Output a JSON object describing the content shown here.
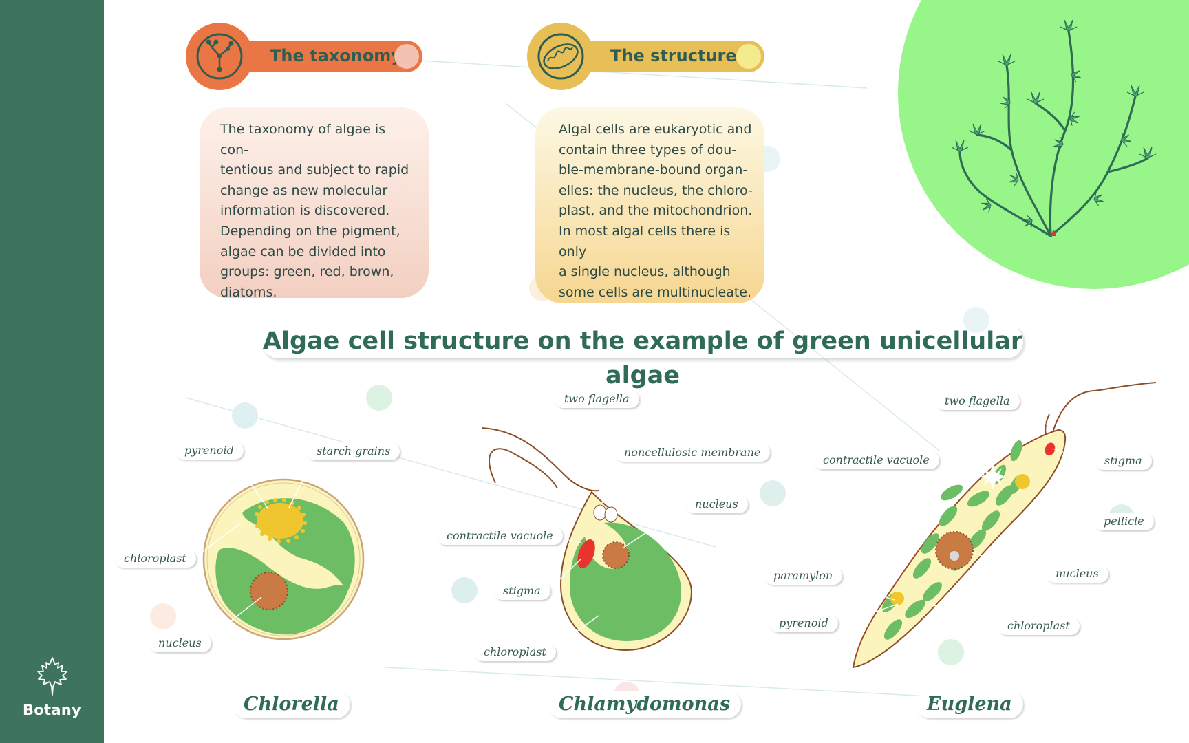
{
  "sidebar": {
    "brand_label": "Botany",
    "brand_icon": "maple-leaf-icon"
  },
  "colors": {
    "sidebar": "#3e735e",
    "taxonomy_accent": "#ea7645",
    "structure_accent": "#e8bf57",
    "title_green": "#2f6b55",
    "blob_green": "#98f58a",
    "chloroplast": "#6dbd64",
    "cytoplasm": "#fbf4bd",
    "nucleus": "#c97b43",
    "stigma": "#e8342c",
    "pyrenoid": "#efc62e"
  },
  "cards": {
    "taxonomy": {
      "heading": "The taxonomy",
      "icon": "phylogeny-tree-icon",
      "lines": [
        "The taxonomy of algae is con-",
        "tentious and subject to rapid",
        "change as new molecular",
        "information is discovered.",
        "Depending on the pigment,",
        "algae can be divided into",
        "groups: green, red, brown,",
        "diatoms."
      ]
    },
    "structure": {
      "heading": "The structure",
      "icon": "mitochondrion-icon",
      "lines": [
        "Algal cells are eukaryotic and",
        "contain three types of dou-",
        "ble-membrane-bound organ-",
        "elles: the nucleus, the chloro-",
        "plast, and the mitochondrion.",
        "In most algal cells there is only",
        "a single nucleus, although",
        "some cells are multinucleate."
      ]
    }
  },
  "main_title": "Algae cell structure on the example of green unicellular algae",
  "organisms": {
    "chlorella": {
      "name": "Chlorella",
      "labels": {
        "pyrenoid": "pyrenoid",
        "starch_grains": "starch grains",
        "chloroplast": "chloroplast",
        "nucleus": "nucleus"
      }
    },
    "chlamydomonas": {
      "name": "Chlamydomonas",
      "labels": {
        "two_flagella": "two flagella",
        "noncellulosic_membrane": "noncellulosic membrane",
        "nucleus": "nucleus",
        "contractile_vacuole": "contractile vacuole",
        "stigma": "stigma",
        "chloroplast": "chloroplast"
      }
    },
    "euglena": {
      "name": "Euglena",
      "labels": {
        "two_flagella": "two flagella",
        "contractile_vacuole": "contractile vacuole",
        "stigma": "stigma",
        "pellicle": "pellicle",
        "nucleus": "nucleus",
        "paramylon": "paramylon",
        "pyrenoid": "pyrenoid",
        "chloroplast": "chloroplast"
      }
    }
  }
}
